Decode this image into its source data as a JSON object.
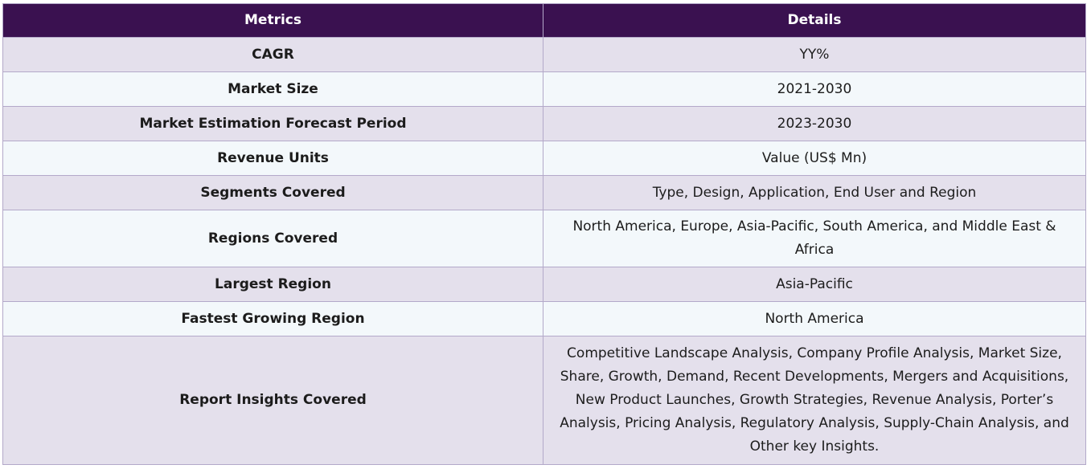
{
  "table": {
    "headers": [
      "Metrics",
      "Details"
    ],
    "rows": [
      {
        "metric": "CAGR",
        "details": "YY%"
      },
      {
        "metric": "Market Size",
        "details": "2021-2030"
      },
      {
        "metric": "Market Estimation Forecast Period",
        "details": "2023-2030"
      },
      {
        "metric": "Revenue Units",
        "details": "Value (US$ Mn)"
      },
      {
        "metric": "Segments Covered",
        "details": "Type, Design, Application, End User and Region"
      },
      {
        "metric": "Regions Covered",
        "details": "North America, Europe, Asia-Pacific, South America, and Middle East & Africa"
      },
      {
        "metric": "Largest Region",
        "details": "Asia-Pacific"
      },
      {
        "metric": "Fastest Growing Region",
        "details": "North America"
      },
      {
        "metric": "Report Insights Covered",
        "details": "Competitive Landscape Analysis, Company Profile Analysis, Market Size, Share, Growth, Demand, Recent Developments, Mergers and Acquisitions, New Product Launches, Growth Strategies, Revenue Analysis, Porter’s Analysis, Pricing Analysis, Regulatory Analysis, Supply-Chain Analysis, and Other key Insights."
      }
    ]
  },
  "colors": {
    "header_bg": "#3a1150",
    "header_text": "#ffffff",
    "row_odd_bg": "#e4e0ec",
    "row_even_bg": "#f3f8fb",
    "border": "#b3a9c9"
  }
}
